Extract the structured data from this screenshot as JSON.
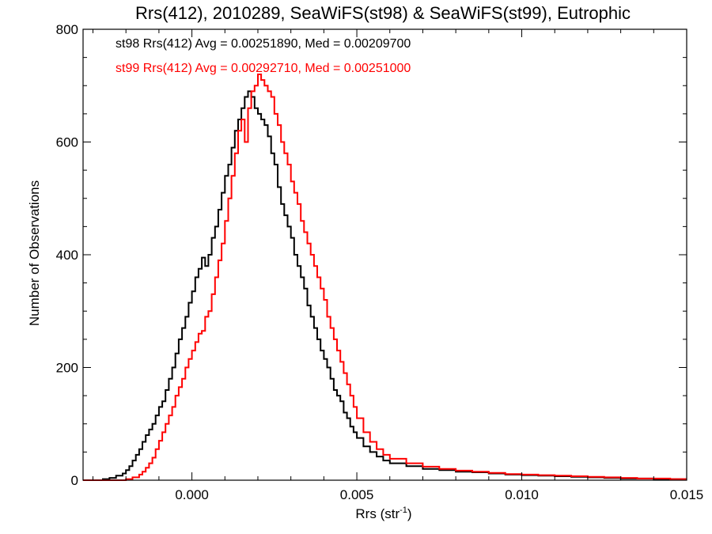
{
  "chart_data": {
    "type": "line",
    "title": "Rrs(412), 2010289, SeaWiFS(st98) & SeaWiFS(st99), Eutrophic",
    "xlabel": "Rrs (str",
    "xlabel_sup": "-1",
    "xlabel_end": ")",
    "ylabel": "Number of Observations",
    "xlim": [
      -0.0033,
      0.015
    ],
    "ylim": [
      0,
      800
    ],
    "x_ticks": [
      "0.000",
      "0.005",
      "0.010",
      "0.015"
    ],
    "x_tick_values": [
      0.0,
      0.005,
      0.01,
      0.015
    ],
    "y_ticks": [
      "0",
      "200",
      "400",
      "600",
      "800"
    ],
    "y_tick_values": [
      0,
      200,
      400,
      600,
      800
    ],
    "step_style": "histogram",
    "annotations": [
      "st98 Rrs(412) Avg = 0.00251890, Med = 0.00209700",
      "st99 Rrs(412) Avg = 0.00292710, Med = 0.00251000"
    ],
    "series": [
      {
        "color": "#000000",
        "x": [
          -0.0033,
          -0.003,
          -0.0027,
          -0.0025,
          -0.0023,
          -0.0021,
          -0.002,
          -0.0019,
          -0.0018,
          -0.0017,
          -0.0016,
          -0.0015,
          -0.0014,
          -0.0013,
          -0.0012,
          -0.0011,
          -0.001,
          -0.0009,
          -0.0008,
          -0.0007,
          -0.0006,
          -0.0005,
          -0.0004,
          -0.0003,
          -0.0002,
          -0.0001,
          0.0,
          0.0001,
          0.0002,
          0.0003,
          0.0004,
          0.0005,
          0.0006,
          0.0007,
          0.0008,
          0.0009,
          0.001,
          0.0011,
          0.0012,
          0.0013,
          0.0014,
          0.0015,
          0.0016,
          0.0017,
          0.0018,
          0.0019,
          0.002,
          0.0021,
          0.0022,
          0.0023,
          0.0024,
          0.0025,
          0.0026,
          0.0027,
          0.0028,
          0.0029,
          0.003,
          0.0031,
          0.0032,
          0.0033,
          0.0034,
          0.0035,
          0.0036,
          0.0037,
          0.0038,
          0.0039,
          0.004,
          0.0041,
          0.0042,
          0.0043,
          0.0044,
          0.0045,
          0.0046,
          0.0047,
          0.0048,
          0.0049,
          0.005,
          0.0052,
          0.0054,
          0.0056,
          0.0058,
          0.006,
          0.0065,
          0.007,
          0.0075,
          0.008,
          0.0085,
          0.009,
          0.0095,
          0.01,
          0.0105,
          0.011,
          0.0115,
          0.012,
          0.0125,
          0.013,
          0.0135,
          0.014,
          0.0145,
          0.015
        ],
        "y": [
          0,
          0,
          2,
          4,
          8,
          12,
          18,
          25,
          35,
          45,
          55,
          68,
          80,
          90,
          100,
          115,
          130,
          140,
          160,
          180,
          200,
          225,
          250,
          270,
          290,
          315,
          335,
          360,
          375,
          395,
          380,
          400,
          430,
          450,
          480,
          510,
          540,
          560,
          590,
          620,
          640,
          660,
          680,
          690,
          680,
          660,
          650,
          640,
          630,
          610,
          580,
          560,
          520,
          490,
          470,
          450,
          430,
          400,
          380,
          360,
          340,
          310,
          290,
          270,
          250,
          230,
          215,
          200,
          180,
          160,
          150,
          140,
          120,
          110,
          95,
          85,
          75,
          60,
          50,
          42,
          35,
          30,
          25,
          20,
          18,
          15,
          14,
          12,
          10,
          9,
          8,
          7,
          6,
          5,
          4,
          3,
          3,
          2,
          2,
          2
        ]
      },
      {
        "color": "#ff0000",
        "x": [
          -0.0033,
          -0.0025,
          -0.002,
          -0.0018,
          -0.0016,
          -0.0015,
          -0.0014,
          -0.0013,
          -0.0012,
          -0.0011,
          -0.001,
          -0.0009,
          -0.0008,
          -0.0007,
          -0.0006,
          -0.0005,
          -0.0004,
          -0.0003,
          -0.0002,
          -0.0001,
          0.0,
          0.0001,
          0.0002,
          0.0003,
          0.0004,
          0.0005,
          0.0006,
          0.0007,
          0.0008,
          0.0009,
          0.001,
          0.0011,
          0.0012,
          0.0013,
          0.0014,
          0.0015,
          0.0016,
          0.0017,
          0.0018,
          0.0019,
          0.002,
          0.0021,
          0.0022,
          0.0023,
          0.0024,
          0.0025,
          0.0026,
          0.0027,
          0.0028,
          0.0029,
          0.003,
          0.0031,
          0.0032,
          0.0033,
          0.0034,
          0.0035,
          0.0036,
          0.0037,
          0.0038,
          0.0039,
          0.004,
          0.0041,
          0.0042,
          0.0043,
          0.0044,
          0.0045,
          0.0046,
          0.0047,
          0.0048,
          0.0049,
          0.005,
          0.0052,
          0.0054,
          0.0056,
          0.0058,
          0.006,
          0.0065,
          0.007,
          0.0075,
          0.008,
          0.0085,
          0.009,
          0.0095,
          0.01,
          0.0105,
          0.011,
          0.0115,
          0.012,
          0.0125,
          0.013,
          0.0135,
          0.014,
          0.0145,
          0.015
        ],
        "y": [
          0,
          0,
          2,
          5,
          10,
          15,
          22,
          30,
          40,
          55,
          70,
          85,
          100,
          115,
          130,
          150,
          165,
          180,
          200,
          215,
          230,
          245,
          260,
          265,
          290,
          300,
          330,
          360,
          390,
          420,
          460,
          500,
          540,
          580,
          620,
          640,
          600,
          660,
          690,
          700,
          720,
          710,
          700,
          690,
          680,
          650,
          630,
          600,
          580,
          560,
          530,
          510,
          490,
          460,
          440,
          420,
          400,
          380,
          360,
          340,
          320,
          290,
          270,
          250,
          230,
          210,
          190,
          170,
          150,
          130,
          110,
          85,
          68,
          55,
          45,
          38,
          30,
          24,
          20,
          17,
          15,
          13,
          11,
          10,
          9,
          8,
          7,
          6,
          5,
          4,
          3,
          3,
          2,
          2
        ]
      }
    ]
  }
}
